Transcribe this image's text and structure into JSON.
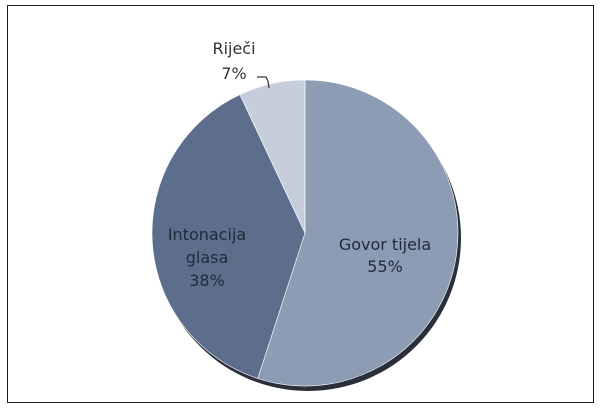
{
  "chart_data": {
    "type": "pie",
    "title": "",
    "slices": [
      {
        "label": "Govor tijela",
        "value": 55,
        "value_label": "55%",
        "color": "#8d9cb5",
        "label_lines": [
          "Govor tijela",
          "55%"
        ],
        "label_position": "inside"
      },
      {
        "label": "Intonacija glasa",
        "value": 38,
        "value_label": "38%",
        "color": "#5c6e8c",
        "label_lines": [
          "Intonacija",
          "glasa",
          "38%"
        ],
        "label_position": "inside"
      },
      {
        "label": "Riječi",
        "value": 7,
        "value_label": "7%",
        "color": "#c7cedb",
        "label_lines": [
          "Riječi",
          "7%"
        ],
        "label_position": "outside"
      }
    ],
    "start_angle_deg": 0,
    "direction": "clockwise",
    "legend": "none"
  }
}
